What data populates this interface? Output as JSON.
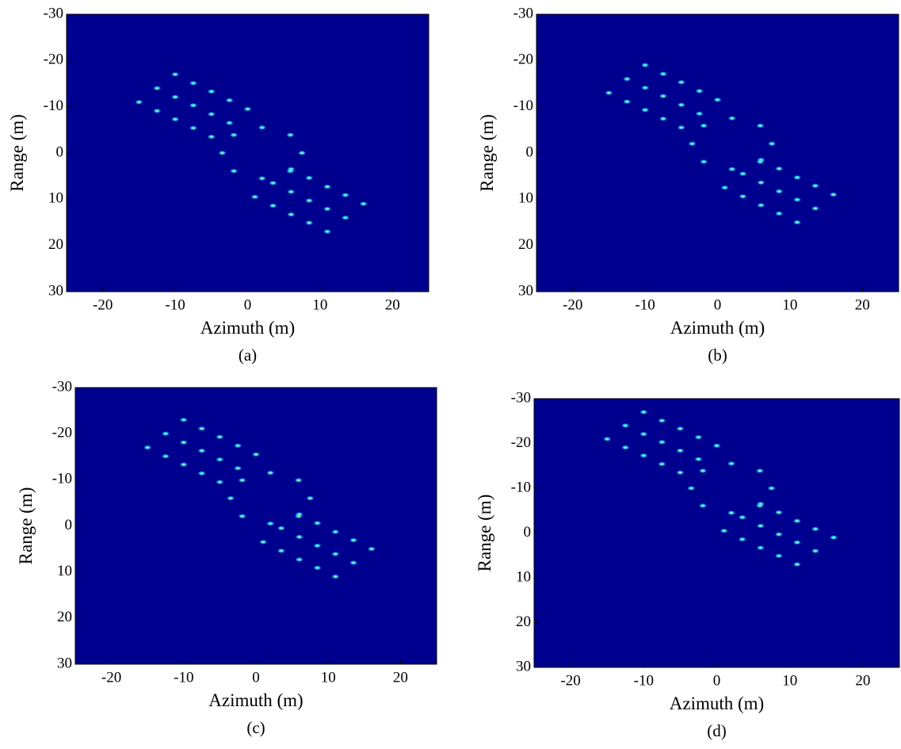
{
  "chart_data": [
    {
      "type": "scatter",
      "caption": "(a)",
      "xlabel": "Azimuth (m)",
      "ylabel": "Range (m)",
      "background": "#00008f",
      "xlim": [
        -25,
        25
      ],
      "ylim": [
        -30,
        30
      ],
      "y_inverted": true,
      "xticks": [
        -20,
        -10,
        0,
        10,
        20
      ],
      "yticks": [
        -30,
        -20,
        -10,
        0,
        10,
        20,
        30
      ],
      "series": [
        {
          "color": "#1fd0ff",
          "x": [
            -15,
            -12.5,
            -10,
            -12.5,
            -10,
            -7.5,
            -10,
            -7.5,
            -5,
            -7.5,
            -5,
            -2.5,
            -5,
            -2.5,
            0,
            7.5,
            5.9,
            2,
            -1.9,
            -3.5,
            -1.9,
            2,
            5.9,
            16,
            13.5,
            11,
            13.5,
            11,
            8.5,
            11,
            8.5,
            6,
            8.5,
            6,
            3.5,
            6,
            3.5,
            1
          ],
          "values": [
            -11,
            -14,
            -17,
            -9.1,
            -12.1,
            -15.1,
            -7.3,
            -10.3,
            -13.3,
            -5.4,
            -8.4,
            -11.4,
            -3.5,
            -6.5,
            -9.5,
            0,
            3.9,
            5.5,
            3.9,
            0,
            -3.9,
            -5.5,
            -3.9,
            11,
            14,
            17,
            9.1,
            12.1,
            15.1,
            7.3,
            10.3,
            13.3,
            5.4,
            8.4,
            11.4,
            3.5,
            6.5,
            9.5
          ]
        }
      ]
    },
    {
      "type": "scatter",
      "caption": "(b)",
      "xlabel": "Azimuth (m)",
      "ylabel": "Range (m)",
      "background": "#00008f",
      "xlim": [
        -25,
        25
      ],
      "ylim": [
        -30,
        30
      ],
      "y_inverted": true,
      "xticks": [
        -20,
        -10,
        0,
        10,
        20
      ],
      "yticks": [
        -30,
        -20,
        -10,
        0,
        10,
        20,
        30
      ],
      "series": [
        {
          "color": "#1fd0ff",
          "x": [
            -15,
            -12.5,
            -10,
            -12.5,
            -10,
            -7.5,
            -10,
            -7.5,
            -5,
            -7.5,
            -5,
            -2.5,
            -5,
            -2.5,
            0,
            7.5,
            5.9,
            2,
            -1.9,
            -3.5,
            -1.9,
            2,
            5.9,
            16,
            13.5,
            11,
            13.5,
            11,
            8.5,
            11,
            8.5,
            6,
            8.5,
            6,
            3.5,
            6,
            3.5,
            1
          ],
          "values": [
            -13,
            -16,
            -19,
            -11.1,
            -14.1,
            -17.1,
            -9.3,
            -12.3,
            -15.3,
            -7.4,
            -10.4,
            -13.4,
            -5.5,
            -8.5,
            -11.5,
            -2,
            1.9,
            3.5,
            1.9,
            -2,
            -5.9,
            -7.5,
            -5.9,
            9,
            12,
            15,
            7.1,
            10.1,
            13.1,
            5.3,
            8.3,
            11.3,
            3.4,
            6.4,
            9.4,
            1.5,
            4.5,
            7.5
          ]
        }
      ]
    },
    {
      "type": "scatter",
      "caption": "(c)",
      "xlabel": "Azimuth (m)",
      "ylabel": "Range (m)",
      "background": "#00008f",
      "xlim": [
        -25,
        25
      ],
      "ylim": [
        -30,
        30
      ],
      "y_inverted": true,
      "xticks": [
        -20,
        -10,
        0,
        10,
        20
      ],
      "yticks": [
        -30,
        -20,
        -10,
        0,
        10,
        20,
        30
      ],
      "series": [
        {
          "color": "#1fd0ff",
          "x": [
            -15,
            -12.5,
            -10,
            -12.5,
            -10,
            -7.5,
            -10,
            -7.5,
            -5,
            -7.5,
            -5,
            -2.5,
            -5,
            -2.5,
            0,
            7.5,
            5.9,
            2,
            -1.9,
            -3.5,
            -1.9,
            2,
            5.9,
            16,
            13.5,
            11,
            13.5,
            11,
            8.5,
            11,
            8.5,
            6,
            8.5,
            6,
            3.5,
            6,
            3.5,
            1
          ],
          "values": [
            -17,
            -20,
            -23,
            -15.1,
            -18.1,
            -21.1,
            -13.3,
            -16.3,
            -19.3,
            -11.4,
            -14.4,
            -17.4,
            -9.5,
            -12.5,
            -15.5,
            -6,
            -2.1,
            -0.5,
            -2.1,
            -6,
            -9.9,
            -11.5,
            -9.9,
            5,
            8,
            11,
            3.1,
            6.1,
            9.1,
            1.3,
            4.3,
            7.3,
            -0.6,
            2.4,
            5.4,
            -2.5,
            0.5,
            3.5
          ]
        }
      ]
    },
    {
      "type": "scatter",
      "caption": "(d)",
      "xlabel": "Azimuth (m)",
      "ylabel": "Range (m)",
      "background": "#00008f",
      "xlim": [
        -25,
        25
      ],
      "ylim": [
        -30,
        30
      ],
      "y_inverted": true,
      "xticks": [
        -20,
        -10,
        0,
        10,
        20
      ],
      "yticks": [
        -30,
        -20,
        -10,
        0,
        10,
        20,
        30
      ],
      "series": [
        {
          "color": "#1fd0ff",
          "x": [
            -15,
            -12.5,
            -10,
            -12.5,
            -10,
            -7.5,
            -10,
            -7.5,
            -5,
            -7.5,
            -5,
            -2.5,
            -5,
            -2.5,
            0,
            7.5,
            5.9,
            2,
            -1.9,
            -3.5,
            -1.9,
            2,
            5.9,
            16,
            13.5,
            11,
            13.5,
            11,
            8.5,
            11,
            8.5,
            6,
            8.5,
            6,
            3.5,
            6,
            3.5,
            1
          ],
          "values": [
            -21,
            -24,
            -27,
            -19.1,
            -22.1,
            -25.1,
            -17.3,
            -20.3,
            -23.3,
            -15.4,
            -18.4,
            -21.4,
            -13.5,
            -16.5,
            -19.5,
            -10,
            -6.1,
            -4.5,
            -6.1,
            -10,
            -13.9,
            -15.5,
            -13.9,
            1,
            4,
            7,
            -0.9,
            2.1,
            5.1,
            -2.7,
            0.3,
            3.3,
            -4.6,
            -1.6,
            1.4,
            -6.5,
            -3.5,
            -0.5
          ]
        }
      ]
    }
  ]
}
